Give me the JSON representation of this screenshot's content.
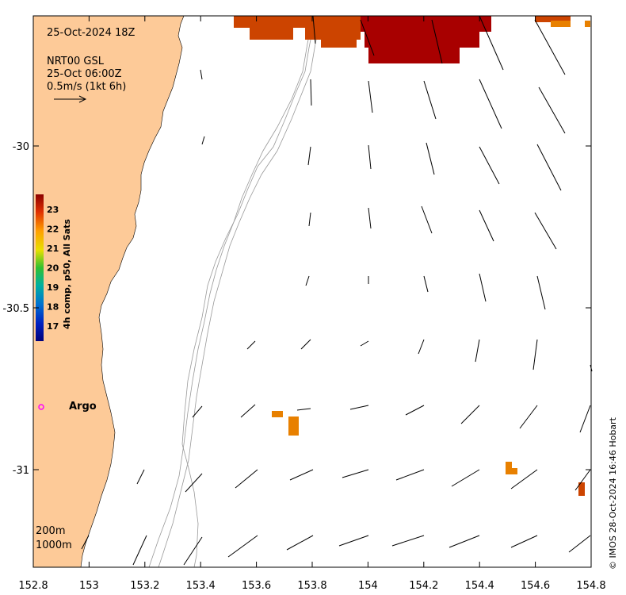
{
  "map": {
    "date_label": "25-Oct-2024 18Z",
    "current_product": "NRT00 GSL",
    "current_time": "25-Oct 06:00Z",
    "scale_arrow_label": "0.5m/s (1kt 6h)",
    "colorbar_title": "4h comp, p50, All Sats",
    "colorbar_ticks": [
      "23",
      "22",
      "21",
      "20",
      "19",
      "18",
      "17"
    ],
    "argo_label": "Argo",
    "isobath_labels": [
      "200m",
      "1000m"
    ],
    "credit": "© IMOS 28-Oct-2024 16:46 Hobart",
    "x_ticks": [
      "152.8",
      "153",
      "153.2",
      "153.4",
      "153.6",
      "153.8",
      "154",
      "154.2",
      "154.4",
      "154.6",
      "154.8"
    ],
    "y_ticks": [
      "-30",
      "-30.5",
      "-31"
    ],
    "colors": {
      "land": "#fdca98",
      "sst_warm": "#a80000",
      "sst_mid": "#cc4400",
      "sst_orange": "#e88000",
      "argo_marker": "#ff00ff",
      "isobath": "#999999"
    }
  }
}
